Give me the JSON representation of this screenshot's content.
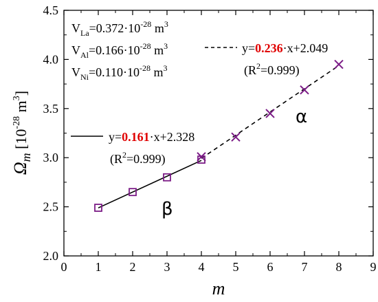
{
  "chart_data": {
    "type": "scatter",
    "xlabel": "m",
    "ylabel_symbol": "Ω",
    "ylabel_sub": "m",
    "ylabel_unit_open": " [10",
    "ylabel_unit_exp": "-28",
    "ylabel_unit_close": " m",
    "ylabel_unit_close_exp": "3",
    "ylabel_unit_end": "]",
    "xlim": [
      0,
      9
    ],
    "ylim": [
      2.0,
      4.5
    ],
    "xticks": [
      "0",
      "1",
      "2",
      "3",
      "4",
      "5",
      "6",
      "7",
      "8",
      "9"
    ],
    "yticks": [
      "2.0",
      "2.5",
      "3.0",
      "3.5",
      "4.0",
      "4.5"
    ],
    "grid": false,
    "series": [
      {
        "marker": "square",
        "color": "#7b1c86",
        "x": [
          1,
          2,
          3,
          4
        ],
        "y": [
          2.49,
          2.65,
          2.8,
          2.98
        ]
      },
      {
        "marker": "x",
        "color": "#7b1c86",
        "x": [
          4,
          5,
          6,
          7,
          8
        ],
        "y": [
          3.01,
          3.21,
          3.45,
          3.69,
          3.95
        ]
      }
    ],
    "fits": [
      {
        "style": "solid",
        "slope": 0.161,
        "intercept": 2.328,
        "x_range": [
          1,
          4
        ]
      },
      {
        "style": "dashed",
        "slope": 0.236,
        "intercept": 2.049,
        "x_range": [
          4,
          8
        ]
      }
    ],
    "volume_labels": [
      {
        "prefix": "V",
        "sub": "La",
        "value": "=0.372·10",
        "exp": "-28",
        "unit": " m",
        "unit_exp": "3"
      },
      {
        "prefix": "V",
        "sub": "Al",
        "value": "=0.166·10",
        "exp": "-28",
        "unit": " m",
        "unit_exp": "3"
      },
      {
        "prefix": "V",
        "sub": "Ni",
        "value": "=0.110·10",
        "exp": "-28",
        "unit": " m",
        "unit_exp": "3"
      }
    ],
    "fit_labels": [
      {
        "eq_prefix": "y=",
        "slope": "0.161",
        "eq_suffix": "·x+2.328",
        "r2_open": "(R",
        "r2_exp": "2",
        "r2_close": "=0.999)"
      },
      {
        "eq_prefix": "y=",
        "slope": "0.236",
        "eq_suffix": "·x+2.049",
        "r2_open": "(R",
        "r2_exp": "2",
        "r2_close": "=0.999)"
      }
    ],
    "phase_labels": {
      "beta": "β",
      "alpha": "α"
    }
  }
}
